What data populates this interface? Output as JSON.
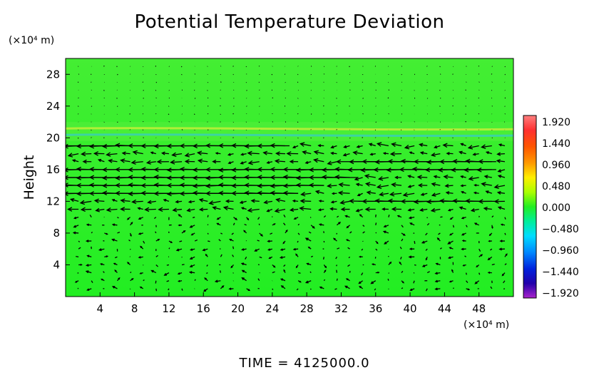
{
  "chart_data": {
    "type": "heatmap",
    "title": "Potential Temperature Deviation",
    "ylabel": "Height",
    "xlabel": "",
    "x_unit": "(×10⁴ m)",
    "y_unit": "(×10⁴ m)",
    "xlim": [
      0,
      52
    ],
    "ylim": [
      0,
      30
    ],
    "x_ticks": [
      4,
      8,
      12,
      16,
      20,
      24,
      28,
      32,
      36,
      40,
      44,
      48
    ],
    "y_ticks": [
      4,
      8,
      12,
      16,
      20,
      24,
      28
    ],
    "colorbar": {
      "labels": [
        "1.920",
        "1.440",
        "0.960",
        "0.480",
        "0.000",
        "-0.480",
        "-0.960",
        "-1.440",
        "-1.920"
      ],
      "min": -1.92,
      "max": 1.92
    },
    "background_value": 0.0,
    "bands": [
      {
        "name": "warm-streak",
        "y": 21.0,
        "value": 0.55
      },
      {
        "name": "cool-streak",
        "y": 20.2,
        "value": -0.6
      }
    ],
    "wind_jets": [
      {
        "y": 19,
        "x_start": 0,
        "x_end": 26,
        "strength": 1.0
      },
      {
        "y": 17,
        "x_start": 33,
        "x_end": 50,
        "strength": 0.9
      },
      {
        "y": 16,
        "x_start": 0,
        "x_end": 50,
        "strength": 1.0
      },
      {
        "y": 15,
        "x_start": 0,
        "x_end": 34,
        "strength": 1.0
      },
      {
        "y": 14,
        "x_start": 0,
        "x_end": 30,
        "strength": 1.0
      },
      {
        "y": 13,
        "x_start": 0,
        "x_end": 27,
        "strength": 1.0
      },
      {
        "y": 12,
        "x_start": 34,
        "x_end": 50,
        "strength": 0.9
      }
    ],
    "vector_grid": {
      "dx": 1.5,
      "dy": 1.0
    },
    "colors": {
      "field": "#22ee22",
      "arrow": "#000000",
      "warm": "#ffee33",
      "cool": "#22bbff"
    }
  },
  "footer": {
    "time_text": "TIME  =  4125000.0"
  }
}
